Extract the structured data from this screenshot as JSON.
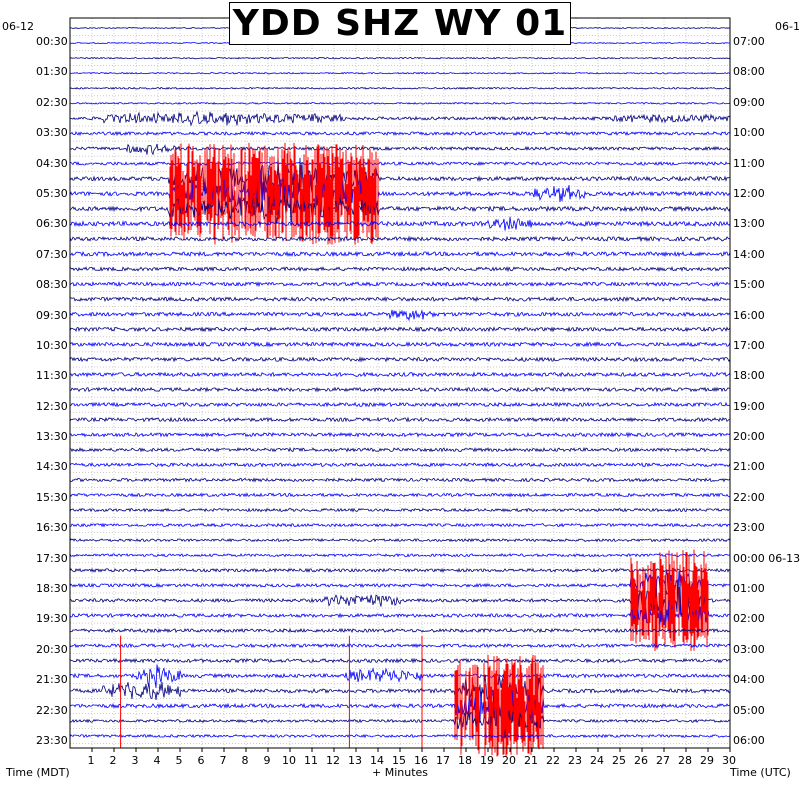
{
  "title": "YDD SHZ WY 01",
  "chart_data": {
    "type": "line",
    "title": "YDD SHZ WY 01",
    "xlabel": "+ Minutes",
    "xlim": [
      0,
      30
    ],
    "x_ticks": [
      1,
      2,
      3,
      4,
      5,
      6,
      7,
      8,
      9,
      10,
      11,
      12,
      13,
      14,
      15,
      16,
      17,
      18,
      19,
      20,
      21,
      22,
      23,
      24,
      25,
      26,
      27,
      28,
      29,
      30
    ],
    "left_axis_label": "Time (MDT)",
    "right_axis_label": "Time (UTC)",
    "left_date": "06-12",
    "right_date": "06-1",
    "left_ticks": [
      "00:30",
      "01:30",
      "02:30",
      "03:30",
      "04:30",
      "05:30",
      "06:30",
      "07:30",
      "08:30",
      "09:30",
      "10:30",
      "11:30",
      "12:30",
      "13:30",
      "14:30",
      "15:30",
      "16:30",
      "17:30",
      "18:30",
      "19:30",
      "20:30",
      "21:30",
      "22:30",
      "23:30"
    ],
    "right_ticks": [
      "07:00",
      "08:00",
      "09:00",
      "10:00",
      "11:00",
      "12:00",
      "13:00",
      "14:00",
      "15:00",
      "16:00",
      "17:00",
      "18:00",
      "19:00",
      "20:00",
      "21:00",
      "22:00",
      "23:00",
      "00:00 06-13",
      "01:00",
      "02:00",
      "03:00",
      "04:00",
      "05:00",
      "06:00"
    ],
    "trace_rows": 48,
    "row_duration_minutes": 30,
    "trace_colors": [
      "#00007f",
      "#0000ff"
    ],
    "clip_color": "#ff0000",
    "grid": true,
    "noise_level_by_hour": [
      0.25,
      0.3,
      0.35,
      0.7,
      0.7,
      0.9,
      1.0,
      0.9,
      0.8,
      0.85,
      0.85,
      0.85,
      0.8,
      0.8,
      0.75,
      0.7,
      0.65,
      0.6,
      0.7,
      0.75,
      0.75,
      0.8,
      0.85,
      0.6
    ],
    "events": [
      {
        "row": 6,
        "start_min": 1.5,
        "end_min": 12.5,
        "amplitude": 1.2
      },
      {
        "row": 6,
        "start_min": 24.5,
        "end_min": 30,
        "amplitude": 0.7
      },
      {
        "row": 8,
        "start_min": 2.5,
        "end_min": 5.0,
        "amplitude": 1.0
      },
      {
        "row": 10,
        "start_min": 4.5,
        "end_min": 14.0,
        "amplitude": 4.0
      },
      {
        "row": 11,
        "start_min": 4.5,
        "end_min": 14.0,
        "amplitude": 4.0
      },
      {
        "row": 12,
        "start_min": 4.5,
        "end_min": 14.0,
        "amplitude": 3.0
      },
      {
        "row": 11,
        "start_min": 21.0,
        "end_min": 23.5,
        "amplitude": 1.5
      },
      {
        "row": 13,
        "start_min": 19.0,
        "end_min": 21.0,
        "amplitude": 1.2
      },
      {
        "row": 19,
        "start_min": 14.5,
        "end_min": 16.5,
        "amplitude": 1.0
      },
      {
        "row": 37,
        "start_min": 25.5,
        "end_min": 29.0,
        "amplitude": 4.0
      },
      {
        "row": 38,
        "start_min": 25.5,
        "end_min": 29.0,
        "amplitude": 4.0
      },
      {
        "row": 39,
        "start_min": 25.5,
        "end_min": 29.0,
        "amplitude": 3.0
      },
      {
        "row": 38,
        "start_min": 11.5,
        "end_min": 15.0,
        "amplitude": 1.5
      },
      {
        "row": 43,
        "start_min": 3.0,
        "end_min": 5.0,
        "amplitude": 2.0
      },
      {
        "row": 44,
        "start_min": 1.5,
        "end_min": 5.0,
        "amplitude": 2.0
      },
      {
        "row": 44,
        "start_min": 17.5,
        "end_min": 21.5,
        "amplitude": 4.0
      },
      {
        "row": 45,
        "start_min": 17.5,
        "end_min": 21.5,
        "amplitude": 4.0
      },
      {
        "row": 46,
        "start_min": 17.5,
        "end_min": 21.5,
        "amplitude": 3.0
      },
      {
        "row": 43,
        "start_min": 12.5,
        "end_min": 16.0,
        "amplitude": 1.5
      }
    ],
    "spikes": [
      {
        "row": 43,
        "minute": 2.3
      },
      {
        "row": 43,
        "minute": 12.7
      },
      {
        "row": 43,
        "minute": 16.0
      }
    ]
  }
}
